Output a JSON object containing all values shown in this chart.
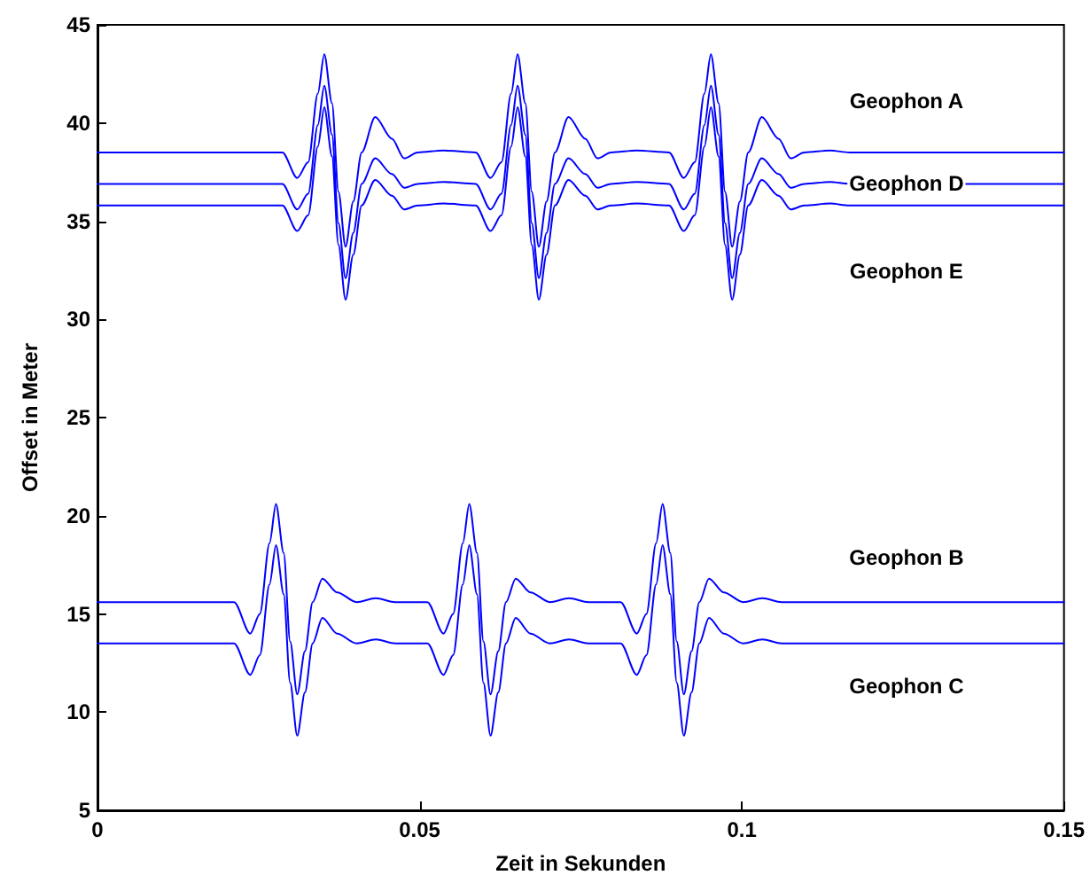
{
  "chart_data": {
    "type": "line",
    "xlabel": "Zeit in Sekunden",
    "ylabel": "Offset in Meter",
    "xlim": [
      0,
      0.15
    ],
    "xticks": [
      0,
      0.05,
      0.1,
      0.15
    ],
    "ylim": [
      5,
      45
    ],
    "yticks": [
      5,
      10,
      15,
      20,
      25,
      30,
      35,
      40,
      45
    ],
    "grid": false,
    "legend": false,
    "marker": "none",
    "line_style": "solid",
    "series": [
      {
        "name": "Geophon A",
        "color": "#0000ff",
        "x": [
          0,
          0.0287,
          0.031,
          0.0327,
          0.0342,
          0.0352,
          0.0364,
          0.0374,
          0.0385,
          0.0397,
          0.041,
          0.0431,
          0.0457,
          0.0476,
          0.0497,
          0.0537,
          0.0587,
          0.061,
          0.0627,
          0.0642,
          0.0652,
          0.0664,
          0.0674,
          0.0685,
          0.0697,
          0.071,
          0.0731,
          0.0757,
          0.0776,
          0.0797,
          0.0837,
          0.0887,
          0.091,
          0.0927,
          0.0942,
          0.0952,
          0.0964,
          0.0974,
          0.0985,
          0.0997,
          0.101,
          0.1031,
          0.1057,
          0.1076,
          0.1097,
          0.1137,
          0.1167,
          0.15
        ],
        "values": [
          38.5,
          38.5,
          37.2,
          38,
          41.5,
          43.5,
          41,
          36.5,
          33.7,
          36,
          38.5,
          40.3,
          39.2,
          38.2,
          38.5,
          38.6,
          38.5,
          37.2,
          38,
          41.5,
          43.5,
          41,
          36.5,
          33.7,
          36,
          38.5,
          40.3,
          39.2,
          38.2,
          38.5,
          38.6,
          38.5,
          37.2,
          38,
          41.5,
          43.5,
          41,
          36.5,
          33.7,
          36,
          38.5,
          40.3,
          39.2,
          38.2,
          38.5,
          38.6,
          38.5,
          38.5
        ]
      },
      {
        "name": "Geophon D",
        "color": "#0000ff",
        "x": [
          0,
          0.0287,
          0.031,
          0.0327,
          0.0342,
          0.0352,
          0.0364,
          0.0374,
          0.0385,
          0.0397,
          0.041,
          0.0431,
          0.0457,
          0.0476,
          0.0497,
          0.0537,
          0.0587,
          0.061,
          0.0627,
          0.0642,
          0.0652,
          0.0664,
          0.0674,
          0.0685,
          0.0697,
          0.071,
          0.0731,
          0.0757,
          0.0776,
          0.0797,
          0.0837,
          0.0887,
          0.091,
          0.0927,
          0.0942,
          0.0952,
          0.0964,
          0.0974,
          0.0985,
          0.0997,
          0.101,
          0.1031,
          0.1057,
          0.1076,
          0.1097,
          0.1137,
          0.1167,
          0.15
        ],
        "values": [
          36.9,
          36.9,
          35.6,
          36.4,
          39.9,
          41.9,
          39.4,
          34.9,
          32.1,
          34.4,
          36.9,
          38.2,
          37.4,
          36.7,
          36.9,
          37,
          36.9,
          35.6,
          36.4,
          39.9,
          41.9,
          39.4,
          34.9,
          32.1,
          34.4,
          36.9,
          38.2,
          37.4,
          36.7,
          36.9,
          37,
          36.9,
          35.6,
          36.4,
          39.9,
          41.9,
          39.4,
          34.9,
          32.1,
          34.4,
          36.9,
          38.2,
          37.4,
          36.7,
          36.9,
          37,
          36.9,
          36.9
        ]
      },
      {
        "name": "Geophon E",
        "color": "#0000ff",
        "x": [
          0,
          0.0287,
          0.031,
          0.0327,
          0.0342,
          0.0352,
          0.0364,
          0.0374,
          0.0385,
          0.0397,
          0.041,
          0.0431,
          0.0457,
          0.0476,
          0.0497,
          0.0537,
          0.0587,
          0.061,
          0.0627,
          0.0642,
          0.0652,
          0.0664,
          0.0674,
          0.0685,
          0.0697,
          0.071,
          0.0731,
          0.0757,
          0.0776,
          0.0797,
          0.0837,
          0.0887,
          0.091,
          0.0927,
          0.0942,
          0.0952,
          0.0964,
          0.0974,
          0.0985,
          0.0997,
          0.101,
          0.1031,
          0.1057,
          0.1076,
          0.1097,
          0.1137,
          0.1167,
          0.15
        ],
        "values": [
          35.8,
          35.8,
          34.5,
          35.3,
          38.8,
          40.8,
          38.3,
          33.8,
          31,
          33.3,
          35.8,
          37.1,
          36.3,
          35.6,
          35.8,
          35.9,
          35.8,
          34.5,
          35.3,
          38.8,
          40.8,
          38.3,
          33.8,
          31,
          33.3,
          35.8,
          37.1,
          36.3,
          35.6,
          35.8,
          35.9,
          35.8,
          34.5,
          35.3,
          38.8,
          40.8,
          38.3,
          33.8,
          31,
          33.3,
          35.8,
          37.1,
          36.3,
          35.6,
          35.8,
          35.9,
          35.8,
          35.8
        ]
      },
      {
        "name": "Geophon B",
        "color": "#0000ff",
        "x": [
          0,
          0.0212,
          0.0237,
          0.0252,
          0.0267,
          0.0277,
          0.0289,
          0.0299,
          0.031,
          0.0322,
          0.0334,
          0.0349,
          0.0372,
          0.0402,
          0.0432,
          0.0462,
          0.0512,
          0.0537,
          0.0552,
          0.0567,
          0.0577,
          0.0589,
          0.0599,
          0.061,
          0.0622,
          0.0634,
          0.0649,
          0.0672,
          0.0702,
          0.0732,
          0.0762,
          0.0812,
          0.0837,
          0.0852,
          0.0867,
          0.0877,
          0.0889,
          0.0899,
          0.091,
          0.0922,
          0.0934,
          0.0949,
          0.0972,
          0.1002,
          0.1032,
          0.1062,
          0.15
        ],
        "values": [
          15.6,
          15.6,
          14,
          15,
          18.6,
          20.6,
          18.1,
          13.6,
          10.9,
          13.1,
          15.6,
          16.8,
          16.1,
          15.6,
          15.8,
          15.6,
          15.6,
          14,
          15,
          18.6,
          20.6,
          18.1,
          13.6,
          10.9,
          13.1,
          15.6,
          16.8,
          16.1,
          15.6,
          15.8,
          15.6,
          15.6,
          14,
          15,
          18.6,
          20.6,
          18.1,
          13.6,
          10.9,
          13.1,
          15.6,
          16.8,
          16.1,
          15.6,
          15.8,
          15.6,
          15.6
        ]
      },
      {
        "name": "Geophon C",
        "color": "#0000ff",
        "x": [
          0,
          0.0212,
          0.0237,
          0.0252,
          0.0267,
          0.0277,
          0.0289,
          0.0299,
          0.031,
          0.0322,
          0.0334,
          0.0349,
          0.0372,
          0.0402,
          0.0432,
          0.0462,
          0.0512,
          0.0537,
          0.0552,
          0.0567,
          0.0577,
          0.0589,
          0.0599,
          0.061,
          0.0622,
          0.0634,
          0.0649,
          0.0672,
          0.0702,
          0.0732,
          0.0762,
          0.0812,
          0.0837,
          0.0852,
          0.0867,
          0.0877,
          0.0889,
          0.0899,
          0.091,
          0.0922,
          0.0934,
          0.0949,
          0.0972,
          0.1002,
          0.1032,
          0.1062,
          0.15
        ],
        "values": [
          13.5,
          13.5,
          11.9,
          12.9,
          16.5,
          18.5,
          16,
          11.5,
          8.8,
          11,
          13.5,
          14.8,
          14,
          13.5,
          13.7,
          13.5,
          13.5,
          11.9,
          12.9,
          16.5,
          18.5,
          16,
          11.5,
          8.8,
          11,
          13.5,
          14.8,
          14,
          13.5,
          13.7,
          13.5,
          13.5,
          11.9,
          12.9,
          16.5,
          18.5,
          16,
          11.5,
          8.8,
          11,
          13.5,
          14.8,
          14,
          13.5,
          13.7,
          13.5,
          13.5
        ]
      }
    ]
  }
}
